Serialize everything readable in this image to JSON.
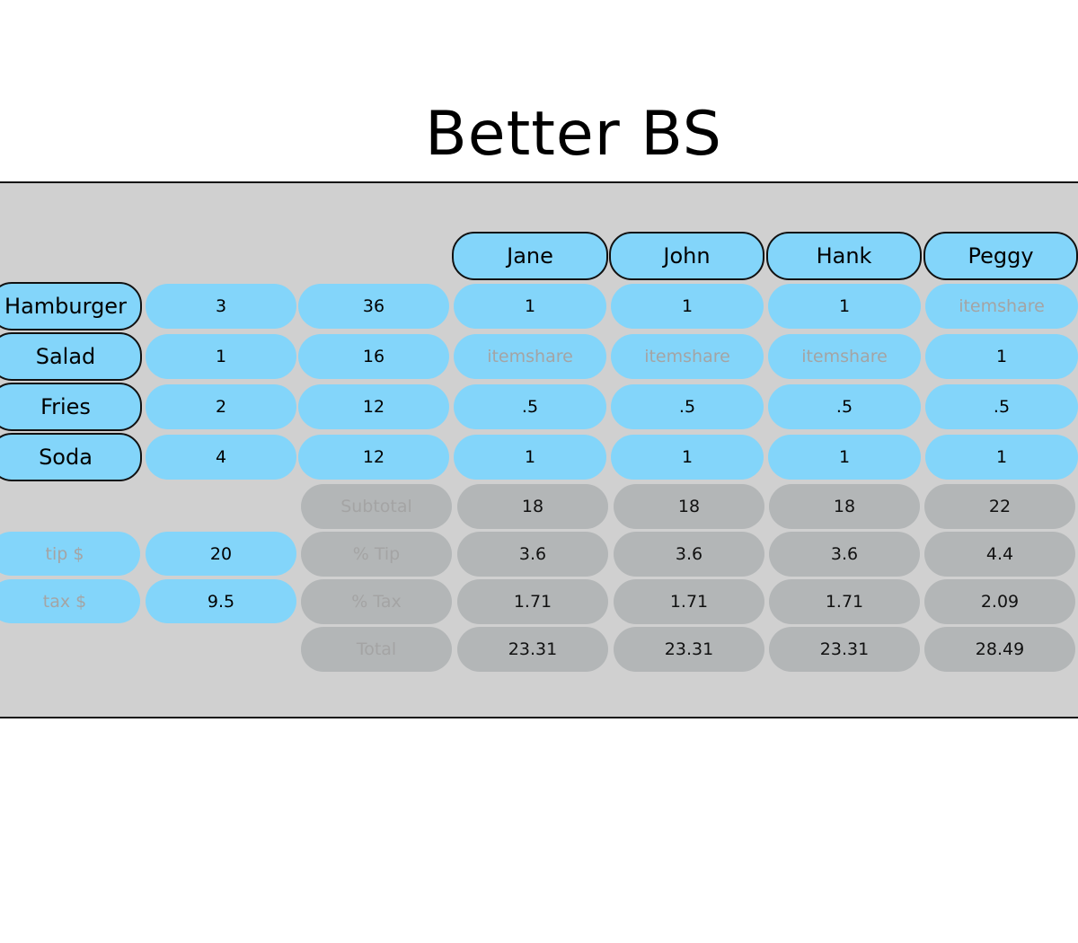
{
  "app": {
    "title": "Better BS"
  },
  "people": [
    "Jane",
    "John",
    "Hank",
    "Peggy"
  ],
  "items": [
    {
      "name": "Hamburger",
      "quantity": "3",
      "price": "36",
      "shares": [
        "1",
        "1",
        "1",
        "itemshare"
      ]
    },
    {
      "name": "Salad",
      "quantity": "1",
      "price": "16",
      "shares": [
        "itemshare",
        "itemshare",
        "itemshare",
        "1"
      ]
    },
    {
      "name": "Fries",
      "quantity": "2",
      "price": "12",
      "shares": [
        ".5",
        ".5",
        ".5",
        ".5"
      ]
    },
    {
      "name": "Soda",
      "quantity": "4",
      "price": "12",
      "shares": [
        "1",
        "1",
        "1",
        "1"
      ]
    }
  ],
  "inputs": {
    "tip_label": "tip $",
    "tip_value": "20",
    "tax_label": "tax $",
    "tax_value": "9.5"
  },
  "summary": [
    {
      "label": "Subtotal",
      "values": [
        "18",
        "18",
        "18",
        "22"
      ]
    },
    {
      "label": "% Tip",
      "values": [
        "3.6",
        "3.6",
        "3.6",
        "4.4"
      ]
    },
    {
      "label": "% Tax",
      "values": [
        "1.71",
        "1.71",
        "1.71",
        "2.09"
      ]
    },
    {
      "label": "Total",
      "values": [
        "23.31",
        "23.31",
        "23.31",
        "28.49"
      ]
    }
  ],
  "placeholder_word": "itemshare",
  "colors": {
    "blue_cell": "#83d5fa",
    "gray_cell": "#b3b6b7",
    "panel": "#d0d0d0",
    "muted_text": "#a4a4a4"
  }
}
